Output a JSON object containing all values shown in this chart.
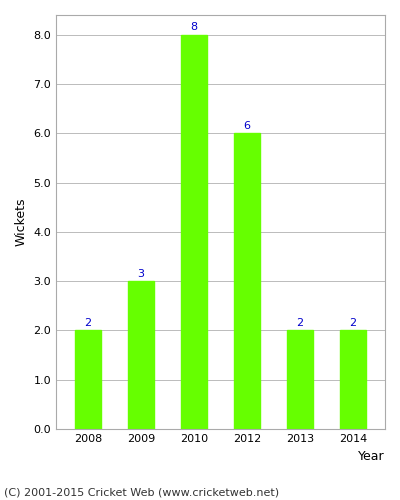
{
  "years": [
    "2008",
    "2009",
    "2010",
    "2012",
    "2013",
    "2014"
  ],
  "wickets": [
    2,
    3,
    8,
    6,
    2,
    2
  ],
  "bar_color": "#66FF00",
  "bar_edgecolor": "#66FF00",
  "label_color": "#0000CC",
  "xlabel": "Year",
  "ylabel": "Wickets",
  "ylim": [
    0,
    8.4
  ],
  "yticks": [
    0.0,
    1.0,
    2.0,
    3.0,
    4.0,
    5.0,
    6.0,
    7.0,
    8.0
  ],
  "grid_color": "#bbbbbb",
  "bg_color": "#ffffff",
  "footer": "(C) 2001-2015 Cricket Web (www.cricketweb.net)",
  "label_fontsize": 8,
  "axis_label_fontsize": 9,
  "tick_fontsize": 8,
  "footer_fontsize": 8,
  "bar_width": 0.5
}
